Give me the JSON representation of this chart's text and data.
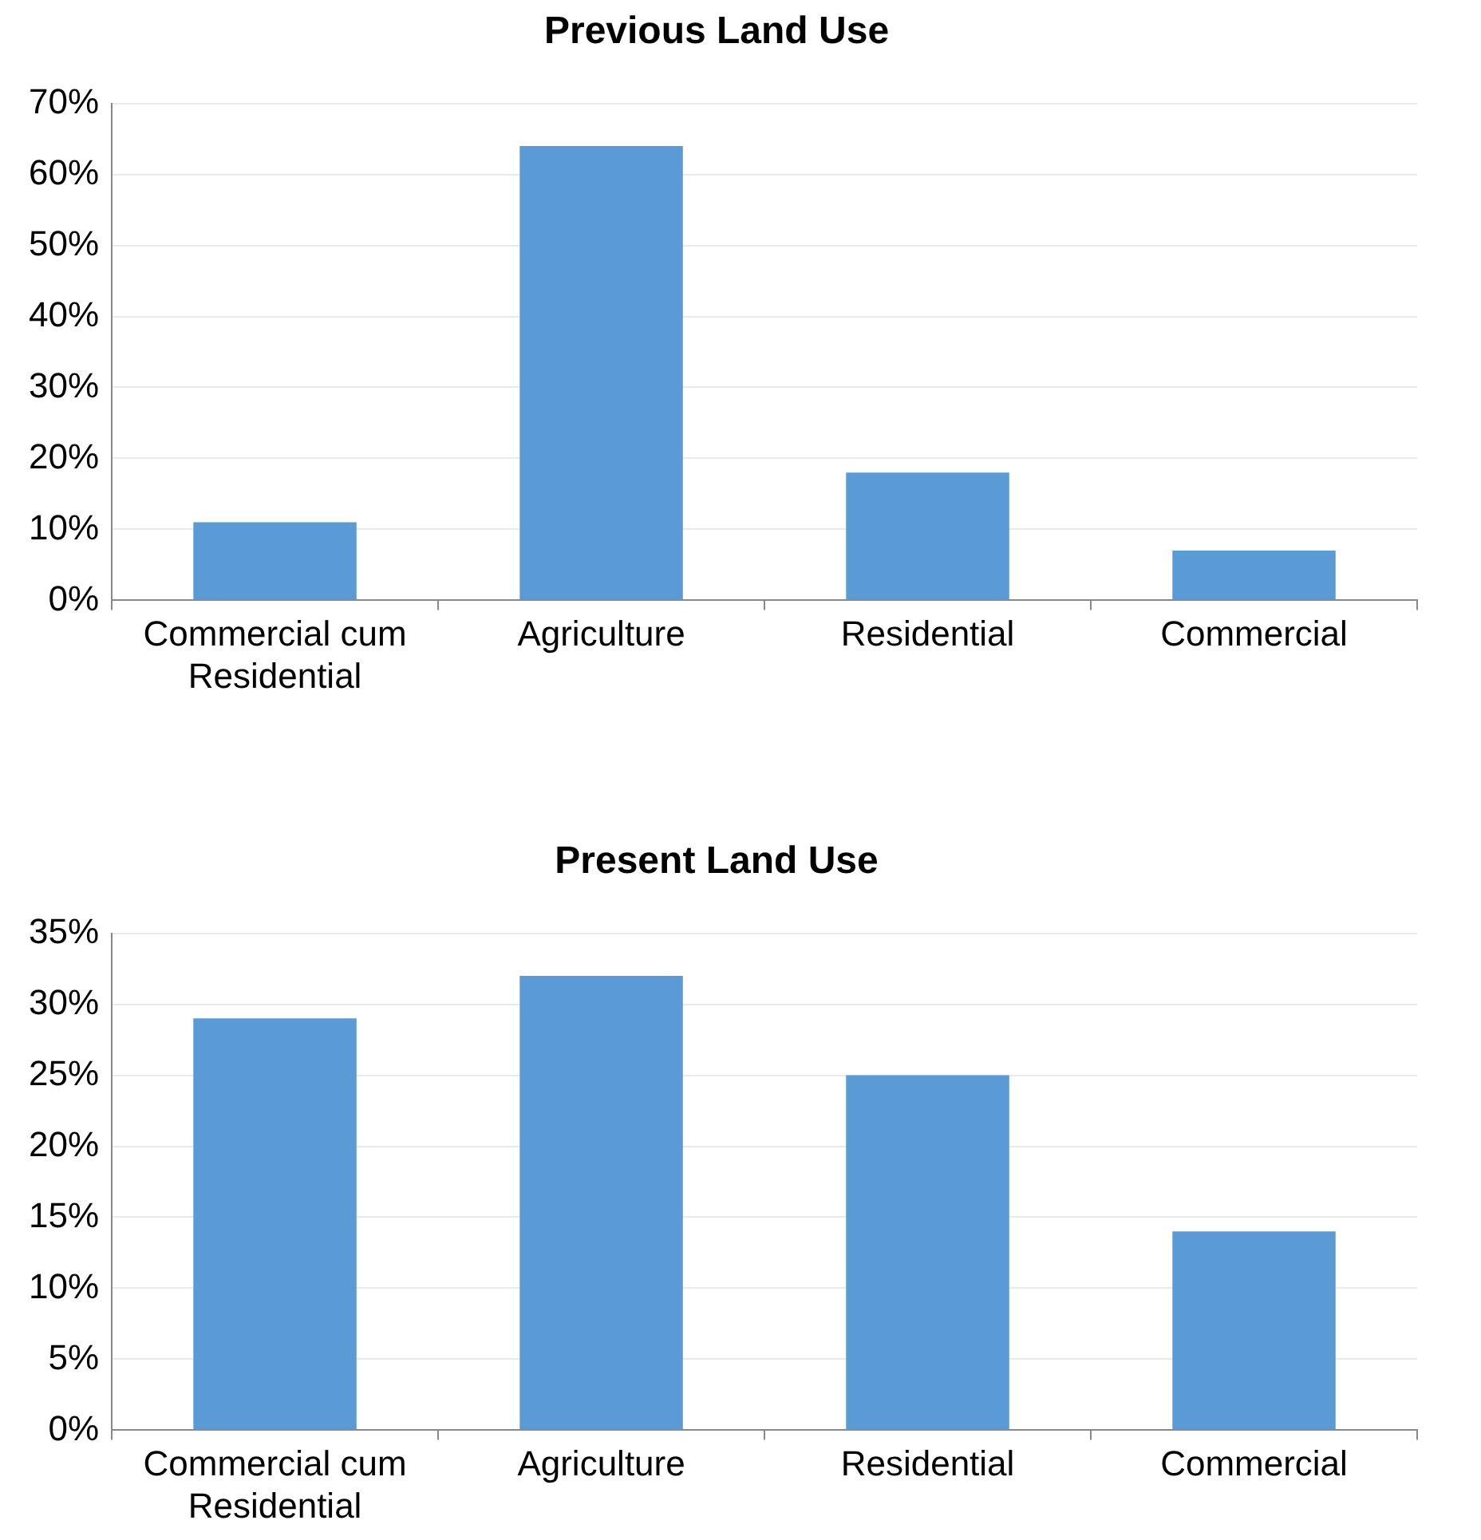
{
  "chart_data": [
    {
      "type": "bar",
      "title": "Previous Land Use",
      "categories": [
        "Commercial cum Residential",
        "Agriculture",
        "Residential",
        "Commercial"
      ],
      "values": [
        11,
        64,
        18,
        7
      ],
      "color": "#5b9bd5",
      "ylim": [
        0,
        70
      ],
      "yticks": [
        {
          "value": 0,
          "label": "0%"
        },
        {
          "value": 10,
          "label": "10%"
        },
        {
          "value": 20,
          "label": "20%"
        },
        {
          "value": 30,
          "label": "30%"
        },
        {
          "value": 40,
          "label": "40%"
        },
        {
          "value": 50,
          "label": "50%"
        },
        {
          "value": 60,
          "label": "60%"
        },
        {
          "value": 70,
          "label": "70%"
        }
      ],
      "grid": "y",
      "legend": false
    },
    {
      "type": "bar",
      "title": "Present Land Use",
      "categories": [
        "Commercial cum Residential",
        "Agriculture",
        "Residential",
        "Commercial"
      ],
      "values": [
        29,
        32,
        25,
        14
      ],
      "color": "#5b9bd5",
      "ylim": [
        0,
        35
      ],
      "yticks": [
        {
          "value": 0,
          "label": "0%"
        },
        {
          "value": 5,
          "label": "5%"
        },
        {
          "value": 10,
          "label": "10%"
        },
        {
          "value": 15,
          "label": "15%"
        },
        {
          "value": 20,
          "label": "20%"
        },
        {
          "value": 25,
          "label": "25%"
        },
        {
          "value": 30,
          "label": "30%"
        },
        {
          "value": 35,
          "label": "35%"
        }
      ],
      "grid": "y",
      "legend": false
    }
  ]
}
